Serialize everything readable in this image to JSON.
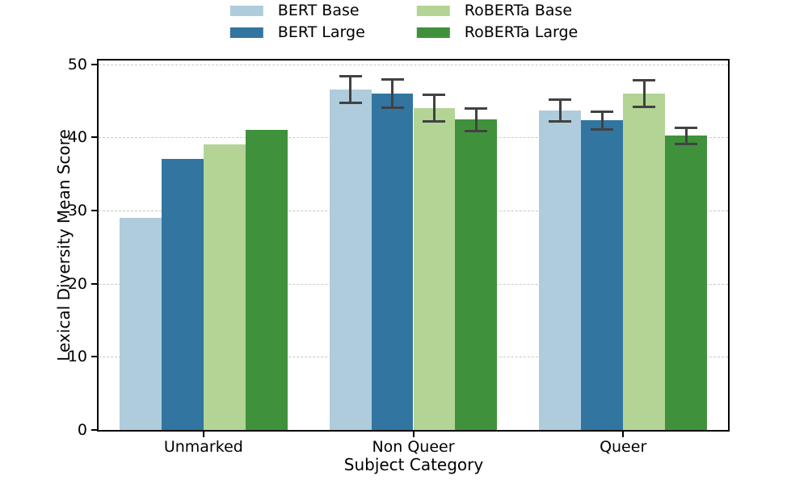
{
  "chart_data": {
    "type": "bar",
    "title": "",
    "xlabel": "Subject Category",
    "ylabel": "Lexical Diversity Mean Score",
    "categories": [
      "Unmarked",
      "Non Queer",
      "Queer"
    ],
    "series": [
      {
        "name": "BERT Base",
        "color": "#aeccdc",
        "values": [
          29,
          46.5,
          43.7
        ],
        "errors": [
          0,
          1.8,
          1.5
        ]
      },
      {
        "name": "BERT Large",
        "color": "#3275a1",
        "values": [
          37,
          46.0,
          42.3
        ],
        "errors": [
          0,
          1.9,
          1.2
        ]
      },
      {
        "name": "RoBERTa Base",
        "color": "#b3d495",
        "values": [
          39,
          44.0,
          46.0
        ],
        "errors": [
          0,
          1.8,
          1.8
        ]
      },
      {
        "name": "RoBERTa Large",
        "color": "#40913b",
        "values": [
          41,
          42.4,
          40.2
        ],
        "errors": [
          0,
          1.5,
          1.1
        ]
      }
    ],
    "ylim": [
      0,
      50.5
    ],
    "yticks": [
      0,
      10,
      20,
      30,
      40,
      50
    ],
    "grid": {
      "axis": "y",
      "style": "dashed",
      "color": "#c8c8c8"
    },
    "error_bar_color": "#424242",
    "legend": {
      "position": "top-center",
      "columns": 2,
      "entries": [
        "BERT Base",
        "BERT Large",
        "RoBERTa Base",
        "RoBERTa Large"
      ]
    }
  }
}
